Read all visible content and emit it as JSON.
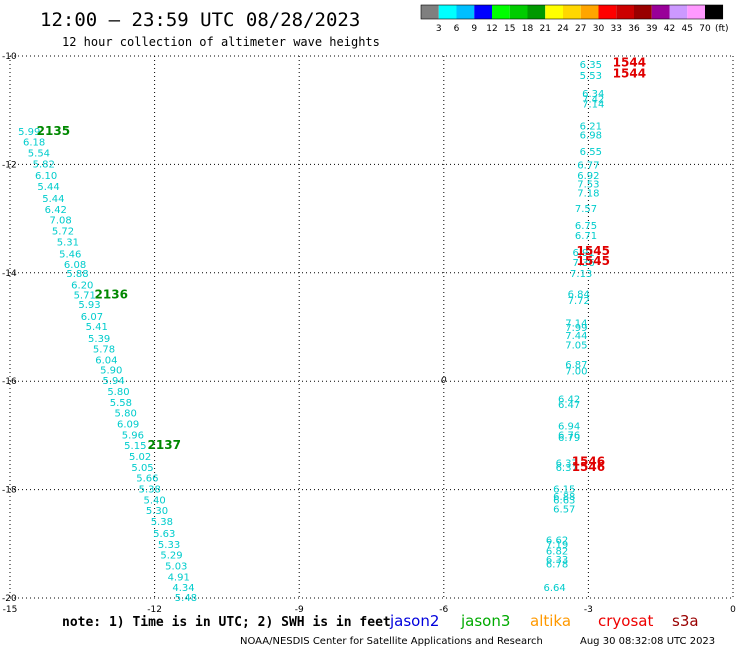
{
  "header": {
    "title": "12:00 — 23:59 UTC 08/28/2023",
    "subtitle": "12 hour collection of altimeter wave heights"
  },
  "colorbar": {
    "colors": [
      "#7f7f7f",
      "#00ffff",
      "#00bfff",
      "#0000ff",
      "#00ff00",
      "#00cc00",
      "#009900",
      "#ffff00",
      "#ffd700",
      "#ffa500",
      "#ff0000",
      "#cc0000",
      "#990000",
      "#990099",
      "#cc99ff",
      "#ff99ff",
      "#000000"
    ],
    "labels": [
      "3",
      "6",
      "9",
      "12",
      "15",
      "18",
      "21",
      "24",
      "27",
      "30",
      "33",
      "36",
      "39",
      "42",
      "45",
      "70"
    ],
    "unit": "(ft)"
  },
  "chart_data": {
    "type": "scatter",
    "title": "12:00 — 23:59 UTC 08/28/2023",
    "xlim": [
      -15,
      0
    ],
    "ylim": [
      -20,
      -10
    ],
    "x_ticks": [
      "-15",
      "-12",
      "-9",
      "-6",
      "-3",
      "0"
    ],
    "y_ticks": [
      "-10",
      "-12",
      "-14",
      "-16",
      "-18",
      "-20"
    ],
    "grid": true,
    "series": [
      {
        "name": "jason3",
        "color": "#00cccc",
        "points": [
          {
            "x": -14.6,
            "y": -11.38,
            "v": "5.99"
          },
          {
            "x": -14.5,
            "y": -11.58,
            "v": "6.18"
          },
          {
            "x": -14.4,
            "y": -11.78,
            "v": "5.54"
          },
          {
            "x": -14.3,
            "y": -11.98,
            "v": "5.82"
          },
          {
            "x": -14.25,
            "y": -12.2,
            "v": "6.10"
          },
          {
            "x": -14.2,
            "y": -12.4,
            "v": "5.44"
          },
          {
            "x": -14.1,
            "y": -12.62,
            "v": "5.44"
          },
          {
            "x": -14.05,
            "y": -12.82,
            "v": "6.42"
          },
          {
            "x": -13.95,
            "y": -13.02,
            "v": "7.08"
          },
          {
            "x": -13.9,
            "y": -13.22,
            "v": "5.72"
          },
          {
            "x": -13.8,
            "y": -13.42,
            "v": "5.31"
          },
          {
            "x": -13.75,
            "y": -13.64,
            "v": "5.46"
          },
          {
            "x": -13.65,
            "y": -13.84,
            "v": "6.08"
          },
          {
            "x": -13.6,
            "y": -14.0,
            "v": "5.88"
          },
          {
            "x": -13.5,
            "y": -14.22,
            "v": "6.20"
          },
          {
            "x": -13.45,
            "y": -14.4,
            "v": "5.71"
          },
          {
            "x": -13.35,
            "y": -14.58,
            "v": "5.93"
          },
          {
            "x": -13.3,
            "y": -14.8,
            "v": "6.07"
          },
          {
            "x": -13.2,
            "y": -14.98,
            "v": "5.41"
          },
          {
            "x": -13.15,
            "y": -15.2,
            "v": "5.39"
          },
          {
            "x": -13.05,
            "y": -15.4,
            "v": "5.78"
          },
          {
            "x": -13.0,
            "y": -15.6,
            "v": "6.04"
          },
          {
            "x": -12.9,
            "y": -15.78,
            "v": "5.90"
          },
          {
            "x": -12.85,
            "y": -15.98,
            "v": "5.94"
          },
          {
            "x": -12.75,
            "y": -16.18,
            "v": "5.80"
          },
          {
            "x": -12.7,
            "y": -16.38,
            "v": "5.58"
          },
          {
            "x": -12.6,
            "y": -16.58,
            "v": "5.80"
          },
          {
            "x": -12.55,
            "y": -16.78,
            "v": "6.09"
          },
          {
            "x": -12.45,
            "y": -16.98,
            "v": "5.96"
          },
          {
            "x": -12.4,
            "y": -17.18,
            "v": "5.15"
          },
          {
            "x": -12.3,
            "y": -17.38,
            "v": "5.02"
          },
          {
            "x": -12.25,
            "y": -17.58,
            "v": "5.05"
          },
          {
            "x": -12.15,
            "y": -17.78,
            "v": "5.66"
          },
          {
            "x": -12.1,
            "y": -17.98,
            "v": "5.38"
          },
          {
            "x": -12.0,
            "y": -18.18,
            "v": "5.40"
          },
          {
            "x": -11.95,
            "y": -18.38,
            "v": "5.30"
          },
          {
            "x": -11.85,
            "y": -18.58,
            "v": "5.38"
          },
          {
            "x": -11.8,
            "y": -18.8,
            "v": "5.63"
          },
          {
            "x": -11.7,
            "y": -19.0,
            "v": "5.33"
          },
          {
            "x": -11.65,
            "y": -19.2,
            "v": "5.29"
          },
          {
            "x": -11.55,
            "y": -19.4,
            "v": "5.03"
          },
          {
            "x": -11.5,
            "y": -19.6,
            "v": "4.91"
          },
          {
            "x": -11.4,
            "y": -19.8,
            "v": "4.34"
          },
          {
            "x": -11.35,
            "y": -19.98,
            "v": "5.48"
          }
        ],
        "pass_labels": [
          {
            "x": -14.1,
            "y": -11.38,
            "text": "2135"
          },
          {
            "x": -12.9,
            "y": -14.4,
            "text": "2136"
          },
          {
            "x": -11.8,
            "y": -17.18,
            "text": "2137"
          }
        ],
        "pass_color": "#008800"
      },
      {
        "name": "cryosat",
        "color": "#00cccc",
        "points": [
          {
            "x": -2.95,
            "y": -10.15,
            "v": "6.35"
          },
          {
            "x": -2.95,
            "y": -10.35,
            "v": "5.53"
          },
          {
            "x": -2.9,
            "y": -10.68,
            "v": "6.34"
          },
          {
            "x": -2.9,
            "y": -10.78,
            "v": "7.42"
          },
          {
            "x": -2.9,
            "y": -10.88,
            "v": "7.14"
          },
          {
            "x": -2.95,
            "y": -11.28,
            "v": "6.21"
          },
          {
            "x": -2.95,
            "y": -11.45,
            "v": "6.98"
          },
          {
            "x": -2.95,
            "y": -11.75,
            "v": "6.55"
          },
          {
            "x": -3.0,
            "y": -12.0,
            "v": "6.77"
          },
          {
            "x": -3.0,
            "y": -12.2,
            "v": "6.92"
          },
          {
            "x": -3.0,
            "y": -12.35,
            "v": "7.53"
          },
          {
            "x": -3.0,
            "y": -12.52,
            "v": "7.18"
          },
          {
            "x": -3.05,
            "y": -12.8,
            "v": "7.57"
          },
          {
            "x": -3.05,
            "y": -13.12,
            "v": "6.75"
          },
          {
            "x": -3.05,
            "y": -13.3,
            "v": "6.71"
          },
          {
            "x": -3.1,
            "y": -13.62,
            "v": "6.91"
          },
          {
            "x": -3.1,
            "y": -13.8,
            "v": "7.36"
          },
          {
            "x": -3.15,
            "y": -14.0,
            "v": "7.13"
          },
          {
            "x": -3.2,
            "y": -14.38,
            "v": "6.84"
          },
          {
            "x": -3.2,
            "y": -14.5,
            "v": "7.72"
          },
          {
            "x": -3.25,
            "y": -14.92,
            "v": "7.14"
          },
          {
            "x": -3.25,
            "y": -15.0,
            "v": "7.99"
          },
          {
            "x": -3.25,
            "y": -15.15,
            "v": "7.44"
          },
          {
            "x": -3.25,
            "y": -15.32,
            "v": "7.05"
          },
          {
            "x": -3.25,
            "y": -15.68,
            "v": "6.87"
          },
          {
            "x": -3.25,
            "y": -15.8,
            "v": "7.00"
          },
          {
            "x": -3.4,
            "y": -16.32,
            "v": "6.42"
          },
          {
            "x": -3.4,
            "y": -16.42,
            "v": "6.47"
          },
          {
            "x": -3.4,
            "y": -16.82,
            "v": "6.94"
          },
          {
            "x": -3.4,
            "y": -16.98,
            "v": "6.76"
          },
          {
            "x": -3.4,
            "y": -17.03,
            "v": "6.79"
          },
          {
            "x": -3.45,
            "y": -17.5,
            "v": "6.37"
          },
          {
            "x": -3.45,
            "y": -17.58,
            "v": "6.37"
          },
          {
            "x": -3.5,
            "y": -17.98,
            "v": "6.15"
          },
          {
            "x": -3.5,
            "y": -18.12,
            "v": "6.88"
          },
          {
            "x": -3.5,
            "y": -18.18,
            "v": "6.63"
          },
          {
            "x": -3.5,
            "y": -18.35,
            "v": "6.57"
          },
          {
            "x": -3.65,
            "y": -18.92,
            "v": "6.62"
          },
          {
            "x": -3.65,
            "y": -19.0,
            "v": "7.19"
          },
          {
            "x": -3.65,
            "y": -19.12,
            "v": "6.82"
          },
          {
            "x": -3.65,
            "y": -19.28,
            "v": "6.33"
          },
          {
            "x": -3.65,
            "y": -19.36,
            "v": "6.78"
          },
          {
            "x": -3.7,
            "y": -19.8,
            "v": "6.64"
          }
        ],
        "pass_labels": [
          {
            "x": -2.15,
            "y": -10.12,
            "text": "1544"
          },
          {
            "x": -2.15,
            "y": -10.32,
            "text": "1544"
          },
          {
            "x": -2.9,
            "y": -13.6,
            "text": "1545"
          },
          {
            "x": -2.9,
            "y": -13.78,
            "text": "1545"
          },
          {
            "x": -3.0,
            "y": -17.48,
            "text": "1546"
          },
          {
            "x": -3.0,
            "y": -17.58,
            "text": "1546"
          }
        ],
        "pass_color": "#e00000"
      }
    ],
    "annotations": [
      {
        "x": -6.0,
        "y": -15.98,
        "text": "0"
      }
    ]
  },
  "legend": {
    "note": "note: 1) Time is in UTC; 2) SWH is in feet",
    "satellites": [
      {
        "name": "jason2",
        "color": "#0000dd"
      },
      {
        "name": "jason3",
        "color": "#00aa00"
      },
      {
        "name": "altika",
        "color": "#ff9900"
      },
      {
        "name": "cryosat",
        "color": "#ee0000"
      },
      {
        "name": "s3a",
        "color": "#990000"
      }
    ]
  },
  "footer": {
    "credit": "NOAA/NESDIS Center for Satellite Applications and Research",
    "timestamp": "Aug 30 08:32:08 UTC 2023"
  }
}
